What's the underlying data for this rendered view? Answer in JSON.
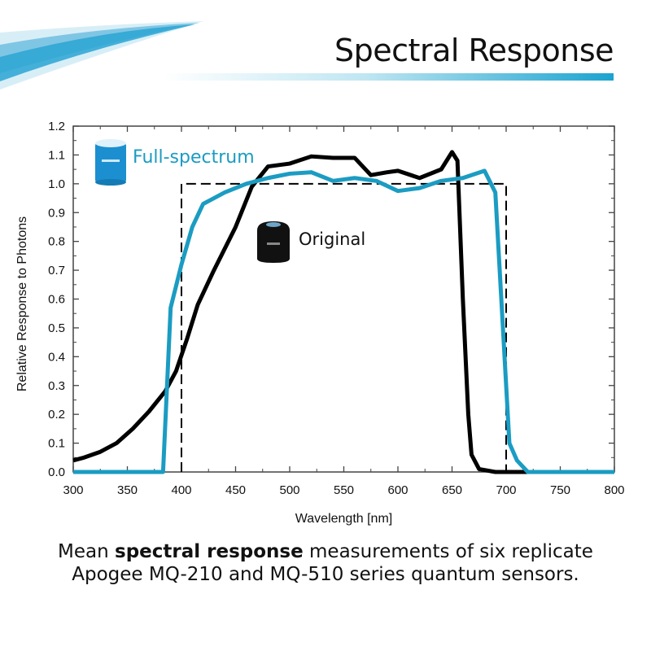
{
  "header": {
    "title": "Spectral Response"
  },
  "caption": {
    "prefix": "Mean ",
    "bold": "spectral response",
    "suffix": " measurements of six replicate",
    "line2": "Apogee MQ-210 and MQ-510 series quantum sensors."
  },
  "colors": {
    "full_spectrum": "#1b9cc2",
    "original": "#000000",
    "accent": "#1aa3cf"
  },
  "chart_data": {
    "type": "line",
    "xlabel": "Wavelength [nm]",
    "ylabel": "Relative Response to Photons",
    "xlim": [
      300,
      800
    ],
    "ylim": [
      0.0,
      1.2
    ],
    "xticks": [
      "300",
      "350",
      "400",
      "450",
      "500",
      "550",
      "600",
      "650",
      "700",
      "750",
      "800"
    ],
    "yticks": [
      "0.0",
      "0.1",
      "0.2",
      "0.3",
      "0.4",
      "0.5",
      "0.6",
      "0.7",
      "0.8",
      "0.9",
      "1.0",
      "1.1",
      "1.2"
    ],
    "grid": false,
    "series": [
      {
        "name": "Full-spectrum",
        "color": "#1b9cc2",
        "icon": "blue-cylinder-sensor",
        "x": [
          300,
          383,
          390,
          400,
          410,
          420,
          440,
          460,
          480,
          500,
          520,
          540,
          560,
          580,
          600,
          620,
          640,
          660,
          680,
          690,
          700,
          703,
          710,
          720,
          800
        ],
        "y": [
          0,
          0,
          0.57,
          0.72,
          0.85,
          0.93,
          0.97,
          1.0,
          1.02,
          1.035,
          1.04,
          1.01,
          1.02,
          1.01,
          0.975,
          0.985,
          1.01,
          1.02,
          1.045,
          0.97,
          0.3,
          0.1,
          0.04,
          0,
          0
        ]
      },
      {
        "name": "Original",
        "color": "#000000",
        "icon": "black-dome-sensor",
        "x": [
          300,
          310,
          325,
          340,
          355,
          370,
          385,
          395,
          405,
          415,
          430,
          450,
          465,
          480,
          500,
          520,
          540,
          560,
          575,
          590,
          600,
          620,
          640,
          650,
          655,
          660,
          665,
          668,
          675,
          690,
          720
        ],
        "y": [
          0.04,
          0.05,
          0.07,
          0.1,
          0.15,
          0.21,
          0.28,
          0.35,
          0.46,
          0.58,
          0.7,
          0.85,
          0.99,
          1.06,
          1.07,
          1.095,
          1.09,
          1.09,
          1.03,
          1.04,
          1.045,
          1.02,
          1.05,
          1.11,
          1.08,
          0.6,
          0.2,
          0.06,
          0.01,
          0,
          0
        ]
      },
      {
        "style": "dashed",
        "color": "#000000",
        "x": [
          400,
          400,
          700,
          700
        ],
        "y": [
          0,
          1.0,
          1.0,
          0
        ]
      }
    ]
  }
}
